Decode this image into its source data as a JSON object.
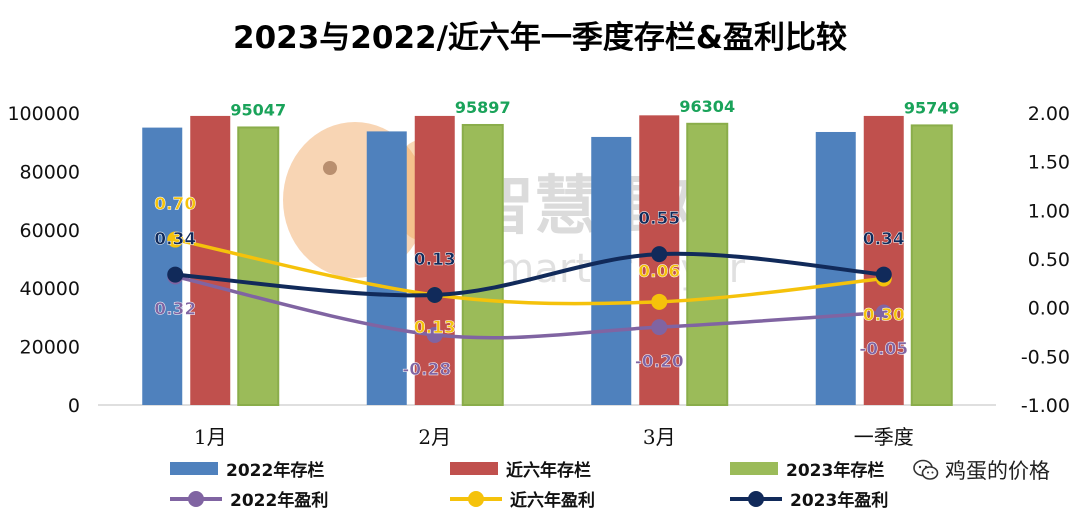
{
  "chart_data": {
    "type": "bar",
    "title": "2023与2022/近六年一季度存栏&盈利比较",
    "categories": [
      "1月",
      "2月",
      "3月",
      "一季度"
    ],
    "y_left": {
      "ylim": [
        0,
        100000
      ],
      "ticks": [
        "0",
        "20000",
        "40000",
        "60000",
        "80000",
        "100000"
      ]
    },
    "y_right": {
      "ylim": [
        -1.0,
        2.0
      ],
      "ticks": [
        "-1.00",
        "-0.50",
        "0.00",
        "0.50",
        "1.00",
        "1.50",
        "2.00"
      ]
    },
    "bar_series": [
      {
        "name": "2022年存栏",
        "color": "#4f81bd",
        "values": [
          95000,
          93700,
          91800,
          93500
        ]
      },
      {
        "name": "近六年存栏",
        "color": "#c0504d",
        "values": [
          99000,
          99000,
          99200,
          99000
        ]
      },
      {
        "name": "2023年存栏",
        "color": "#9bbb59",
        "values": [
          95047,
          95897,
          96304,
          95749
        ],
        "labels": [
          "95047",
          "95897",
          "96304",
          "95749"
        ],
        "label_color": "#1aa35a"
      }
    ],
    "line_series": [
      {
        "name": "2022年盈利",
        "color": "#8064a2",
        "values": [
          0.32,
          -0.28,
          -0.2,
          -0.05
        ],
        "labels": [
          "0.32",
          "-0.28",
          "-0.20",
          "-0.05"
        ]
      },
      {
        "name": "近六年盈利",
        "color": "#f5c20b",
        "values": [
          0.7,
          0.13,
          0.06,
          0.3
        ],
        "labels": [
          "0.70",
          "0.13",
          "0.06",
          "0.30"
        ]
      },
      {
        "name": "2023年盈利",
        "color": "#112a5a",
        "values": [
          0.34,
          0.13,
          0.55,
          0.34
        ],
        "labels": [
          "0.34",
          "0.13",
          "0.55",
          "0.34"
        ]
      }
    ],
    "grid": false,
    "legend_position": "bottom"
  },
  "legend_items": [
    {
      "label": "2022年存栏",
      "kind": "bar",
      "color": "#4f81bd"
    },
    {
      "label": "近六年存栏",
      "kind": "bar",
      "color": "#c0504d"
    },
    {
      "label": "2023年存栏",
      "kind": "bar",
      "color": "#9bbb59"
    },
    {
      "label": "2022年盈利",
      "kind": "line",
      "color": "#8064a2"
    },
    {
      "label": "近六年盈利",
      "kind": "line",
      "color": "#f5c20b"
    },
    {
      "label": "2023年盈利",
      "kind": "line",
      "color": "#112a5a"
    }
  ],
  "watermark": {
    "brand": "智慧蛋鸡",
    "brand_en": "Smarter layer"
  },
  "source_tag": {
    "text": "鸡蛋的价格",
    "icon": "wechat-icon"
  }
}
